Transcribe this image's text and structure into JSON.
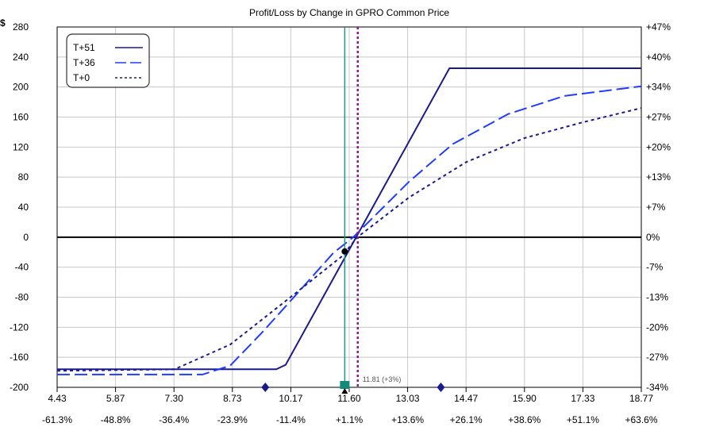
{
  "chart_data": {
    "type": "line",
    "title": "Profit/Loss by Change in GPRO Common Price",
    "ylabel": "$",
    "ylim": [
      -200,
      280
    ],
    "xlim": [
      4.43,
      18.77
    ],
    "grid": true,
    "legend_position": "top-left",
    "y_ticks": [
      "280",
      "240",
      "200",
      "160",
      "120",
      "80",
      "40",
      "0",
      "-40",
      "-80",
      "-120",
      "-160",
      "-200"
    ],
    "y_tick_values": [
      280,
      240,
      200,
      160,
      120,
      80,
      40,
      0,
      -40,
      -80,
      -120,
      -160,
      -200
    ],
    "y2_ticks": [
      "+47%",
      "+40%",
      "+34%",
      "+27%",
      "+20%",
      "+13%",
      "+7%",
      "0%",
      "-7%",
      "-13%",
      "-20%",
      "-27%",
      "-34%"
    ],
    "x_ticks": [
      "4.43",
      "5.87",
      "7.30",
      "8.73",
      "10.17",
      "11.60",
      "13.03",
      "14.47",
      "15.90",
      "17.33",
      "18.77"
    ],
    "x_pct_ticks": [
      "-61.3%",
      "-48.8%",
      "-36.4%",
      "-23.9%",
      "-11.4%",
      "+1.1%",
      "+13.6%",
      "+26.1%",
      "+38.6%",
      "+51.1%",
      "+63.6%"
    ],
    "series": [
      {
        "name": "T+51",
        "color": "#1a1a8c",
        "dash": "",
        "x": [
          4.43,
          9.81,
          10.04,
          14.06,
          18.77
        ],
        "y": [
          -176,
          -176,
          -170,
          225,
          225
        ]
      },
      {
        "name": "T+36",
        "color": "#1f3cff",
        "dash": "16,6",
        "x": [
          4.43,
          8.0,
          8.68,
          9.46,
          10.34,
          11.21,
          11.7,
          13.07,
          14.14,
          15.5,
          16.87,
          18.77
        ],
        "y": [
          -183,
          -183,
          -171,
          -127,
          -74,
          -21,
          0,
          74,
          124,
          164,
          188,
          201
        ]
      },
      {
        "name": "T+0",
        "color": "#1a1a8c",
        "dash": "4,4",
        "x": [
          4.43,
          7.31,
          8.68,
          10.04,
          11.41,
          11.8,
          13.07,
          14.47,
          15.9,
          17.33,
          18.77
        ],
        "y": [
          -178,
          -176,
          -143,
          -85,
          -26,
          0,
          53,
          100,
          132,
          153,
          172
        ]
      }
    ],
    "markers": {
      "current_price": 11.49,
      "current_pl": -19,
      "target_price": 11.81,
      "target_label": "11.81 (+3%)",
      "diamonds": [
        9.54,
        13.85
      ]
    },
    "colors": {
      "current_line": "#1a9a8a",
      "target_line": "#8b1a8b"
    }
  }
}
